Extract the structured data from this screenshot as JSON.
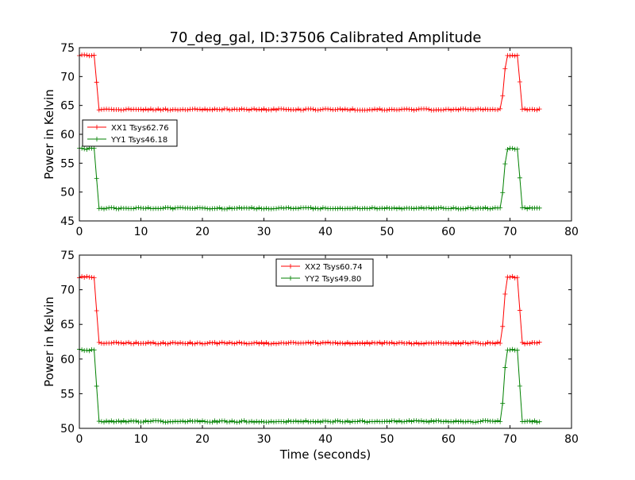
{
  "page_title": "70_deg_gal, ID:37506 Calibrated Amplitude",
  "xlabel": "Time (seconds)",
  "chart_data": [
    {
      "type": "line",
      "ylabel": "Power in Kelvin",
      "xlim": [
        0,
        80
      ],
      "ylim": [
        45,
        75
      ],
      "xticks": [
        0,
        10,
        20,
        30,
        40,
        50,
        60,
        70,
        80
      ],
      "yticks": [
        45,
        50,
        55,
        60,
        65,
        70,
        75
      ],
      "legend_position": "left",
      "series": [
        {
          "name": "XX1 Tsys62.76",
          "color": "#ff0000",
          "profile": {
            "high": 73.7,
            "low": 64.3,
            "t_start": 0,
            "t_end": 74.8,
            "step": 0.4,
            "fall_start": 2.4,
            "fall_end": 3.2,
            "rise_start": 68.6,
            "rise_end": 69.4,
            "fall2_start": 71.2,
            "fall2_end": 72.0
          }
        },
        {
          "name": "YY1 Tsys46.18",
          "color": "#008000",
          "profile": {
            "high": 57.5,
            "low": 47.2,
            "t_start": 0,
            "t_end": 74.8,
            "step": 0.4,
            "fall_start": 2.4,
            "fall_end": 3.2,
            "rise_start": 68.6,
            "rise_end": 69.4,
            "fall2_start": 71.2,
            "fall2_end": 72.0
          }
        }
      ]
    },
    {
      "type": "line",
      "ylabel": "Power in Kelvin",
      "xlim": [
        0,
        80
      ],
      "ylim": [
        50,
        75
      ],
      "xticks": [
        0,
        10,
        20,
        30,
        40,
        50,
        60,
        70,
        80
      ],
      "yticks": [
        50,
        55,
        60,
        65,
        70,
        75
      ],
      "legend_position": "top-center",
      "series": [
        {
          "name": "XX2 Tsys60.74",
          "color": "#ff0000",
          "profile": {
            "high": 71.8,
            "low": 62.3,
            "t_start": 0,
            "t_end": 74.8,
            "step": 0.4,
            "fall_start": 2.4,
            "fall_end": 3.2,
            "rise_start": 68.6,
            "rise_end": 69.4,
            "fall2_start": 71.2,
            "fall2_end": 72.0
          }
        },
        {
          "name": "YY2 Tsys49.80",
          "color": "#008000",
          "profile": {
            "high": 61.3,
            "low": 51.0,
            "t_start": 0,
            "t_end": 74.8,
            "step": 0.4,
            "fall_start": 2.4,
            "fall_end": 3.2,
            "rise_start": 68.6,
            "rise_end": 69.4,
            "fall2_start": 71.2,
            "fall2_end": 72.0
          }
        }
      ]
    }
  ]
}
